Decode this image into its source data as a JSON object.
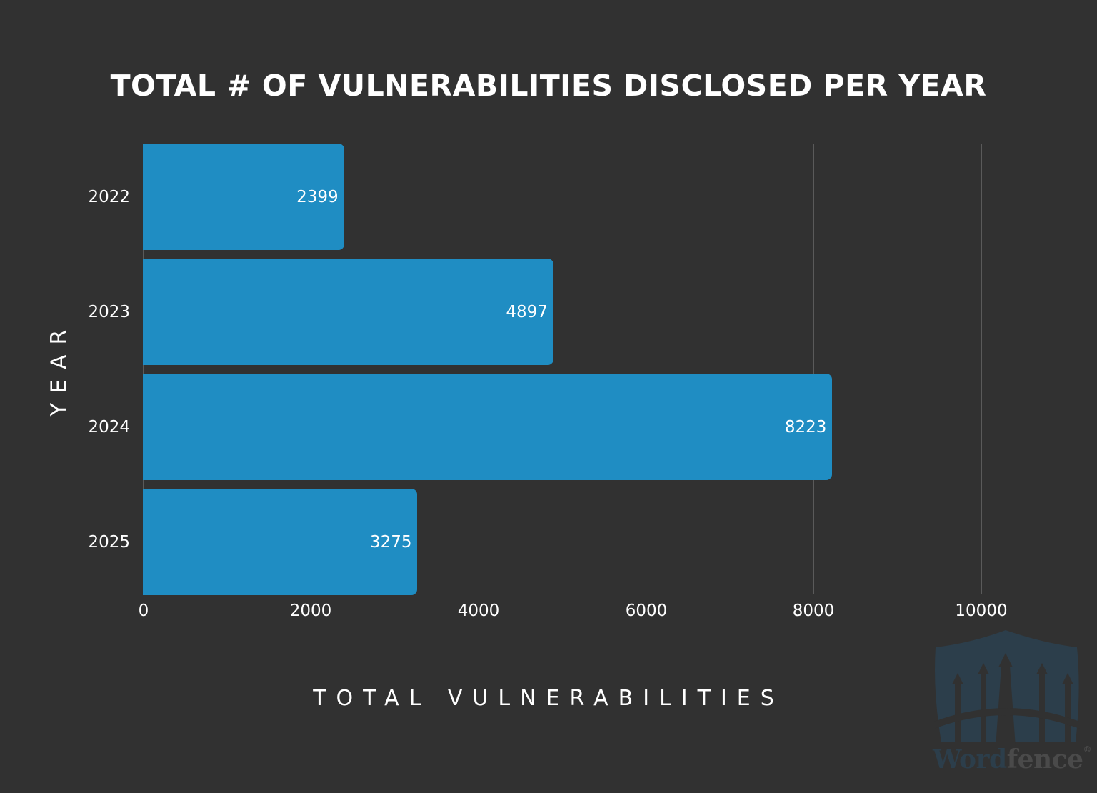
{
  "chart_data": {
    "type": "bar",
    "orientation": "horizontal",
    "title": "TOTAL # OF VULNERABILITIES DISCLOSED PER YEAR",
    "xlabel": "TOTAL VULNERABILITIES",
    "ylabel": "YEAR",
    "categories": [
      "2022",
      "2023",
      "2024",
      "2025"
    ],
    "values": [
      2399,
      4897,
      8223,
      3275
    ],
    "data_labels": [
      "2399",
      "4897",
      "8223",
      "3275"
    ],
    "xlim": [
      0,
      10000
    ],
    "xticks": [
      "0",
      "2000",
      "4000",
      "6000",
      "8000",
      "10000"
    ],
    "grid": "vertical",
    "legend": null,
    "bar_color": "#1f8dc3",
    "background_color": "#313131"
  },
  "branding": {
    "logo_word": "Word",
    "logo_fence": "fence",
    "logo_mark": "®"
  }
}
